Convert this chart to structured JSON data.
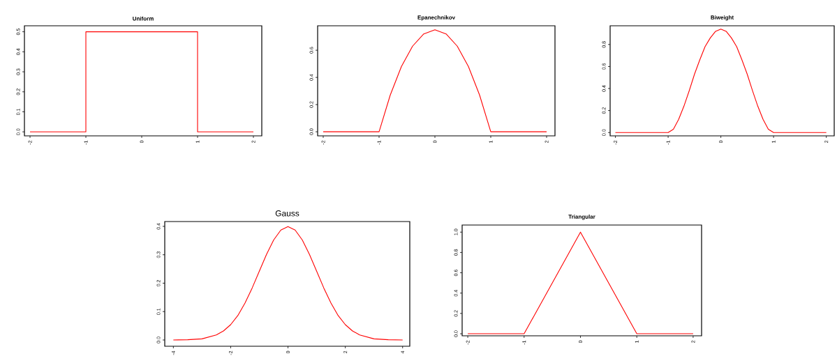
{
  "chart_data": [
    {
      "type": "line",
      "title": "Uniform",
      "xlim": [
        -2.1,
        2.15
      ],
      "ylim": [
        -0.02,
        0.53
      ],
      "xticks": [
        -2,
        -1,
        0,
        1,
        2
      ],
      "yticks": [
        {
          "value": 0,
          "label": "0.0"
        },
        {
          "value": 0.1,
          "label": "0.1"
        },
        {
          "value": 0.2,
          "label": "0.2"
        },
        {
          "value": 0.3,
          "label": "0.3"
        },
        {
          "value": 0.4,
          "label": "0.4"
        },
        {
          "value": 0.5,
          "label": "0.5"
        }
      ],
      "series": [
        {
          "color": "#ff0000",
          "x": [
            -2,
            -1,
            -1,
            1,
            1,
            2
          ],
          "values": [
            0,
            0,
            0.5,
            0.5,
            0,
            0
          ]
        }
      ]
    },
    {
      "type": "line",
      "title": "Epanechnikov",
      "xlim": [
        -2.1,
        2.15
      ],
      "ylim": [
        -0.03,
        0.78
      ],
      "xticks": [
        -2,
        -1,
        0,
        1,
        2
      ],
      "yticks": [
        {
          "value": 0,
          "label": "0.0"
        },
        {
          "value": 0.2,
          "label": "0.2"
        },
        {
          "value": 0.4,
          "label": "0.4"
        },
        {
          "value": 0.6,
          "label": "0.6"
        }
      ],
      "series": [
        {
          "color": "#ff0000",
          "x": [
            -2,
            -1,
            -0.8,
            -0.6,
            -0.4,
            -0.2,
            0,
            0.2,
            0.4,
            0.6,
            0.8,
            1,
            2
          ],
          "values": [
            0,
            0,
            0.27,
            0.48,
            0.63,
            0.72,
            0.75,
            0.72,
            0.63,
            0.48,
            0.27,
            0,
            0
          ]
        }
      ]
    },
    {
      "type": "line",
      "title": "Biweight",
      "xlim": [
        -2.1,
        2.15
      ],
      "ylim": [
        -0.03,
        0.97
      ],
      "xticks": [
        -2,
        -1,
        0,
        1,
        2
      ],
      "yticks": [
        {
          "value": 0,
          "label": "0.0"
        },
        {
          "value": 0.2,
          "label": "0.2"
        },
        {
          "value": 0.4,
          "label": "0.4"
        },
        {
          "value": 0.6,
          "label": "0.6"
        },
        {
          "value": 0.8,
          "label": "0.8"
        }
      ],
      "series": [
        {
          "color": "#ff0000",
          "x": [
            -2,
            -1,
            -0.9,
            -0.8,
            -0.7,
            -0.6,
            -0.5,
            -0.4,
            -0.3,
            -0.2,
            -0.1,
            0,
            0.1,
            0.2,
            0.3,
            0.4,
            0.5,
            0.6,
            0.7,
            0.8,
            0.9,
            1,
            2
          ],
          "values": [
            0,
            0,
            0.03,
            0.12,
            0.24,
            0.38,
            0.53,
            0.66,
            0.78,
            0.86,
            0.92,
            0.94,
            0.92,
            0.86,
            0.78,
            0.66,
            0.53,
            0.38,
            0.24,
            0.12,
            0.03,
            0,
            0
          ]
        }
      ]
    },
    {
      "type": "line",
      "title": "Gauss",
      "xlim": [
        -4.3,
        4.25
      ],
      "ylim": [
        -0.022,
        0.417
      ],
      "xticks": [
        -4,
        -2,
        0,
        2,
        4
      ],
      "yticks": [
        {
          "value": 0,
          "label": "0.0"
        },
        {
          "value": 0.1,
          "label": "0.1"
        },
        {
          "value": 0.2,
          "label": "0.2"
        },
        {
          "value": 0.3,
          "label": "0.3"
        },
        {
          "value": 0.4,
          "label": "0.4"
        }
      ],
      "series": [
        {
          "color": "#ff0000",
          "x": [
            -4,
            -3.5,
            -3,
            -2.5,
            -2.25,
            -2,
            -1.75,
            -1.5,
            -1.25,
            -1,
            -0.75,
            -0.5,
            -0.25,
            0,
            0.25,
            0.5,
            0.75,
            1,
            1.25,
            1.5,
            1.75,
            2,
            2.25,
            2.5,
            3,
            3.5,
            4
          ],
          "values": [
            0,
            0.001,
            0.004,
            0.018,
            0.032,
            0.054,
            0.086,
            0.13,
            0.183,
            0.242,
            0.301,
            0.352,
            0.387,
            0.399,
            0.387,
            0.352,
            0.301,
            0.242,
            0.183,
            0.13,
            0.086,
            0.054,
            0.032,
            0.018,
            0.004,
            0.001,
            0
          ]
        }
      ]
    },
    {
      "type": "line",
      "title": "Triangular",
      "xlim": [
        -2.1,
        2.15
      ],
      "ylim": [
        -0.02,
        1.07
      ],
      "xticks": [
        -2,
        -1,
        0,
        1,
        2
      ],
      "yticks": [
        {
          "value": 0,
          "label": "0.0"
        },
        {
          "value": 0.2,
          "label": "0.2"
        },
        {
          "value": 0.4,
          "label": "0.4"
        },
        {
          "value": 0.6,
          "label": "0.6"
        },
        {
          "value": 0.8,
          "label": "0.8"
        },
        {
          "value": 1,
          "label": "1.0"
        }
      ],
      "series": [
        {
          "color": "#ff0000",
          "x": [
            -2,
            -1,
            0,
            1,
            2
          ],
          "values": [
            0,
            0,
            1,
            0,
            0
          ]
        }
      ]
    }
  ]
}
